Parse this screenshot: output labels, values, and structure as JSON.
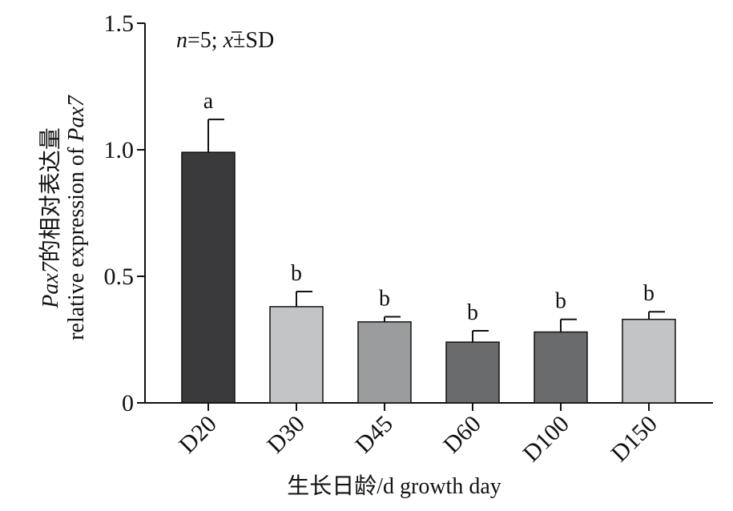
{
  "chart_data": {
    "type": "bar",
    "annotation": {
      "n_label": "n",
      "n_value": "=5; ",
      "mean_symbol": "x",
      "sd_text": "±SD"
    },
    "ylabel_line1_italic": "Pax7",
    "ylabel_line1_rest": "的相对表达量",
    "ylabel_line2_text": "relative expression of ",
    "ylabel_line2_italic": "Pax7",
    "xlabel": "生长日龄/d growth day",
    "ylim": [
      0,
      1.5
    ],
    "yticks": [
      0,
      0.5,
      1.0,
      1.5
    ],
    "ytick_labels": [
      "0",
      "0.5",
      "1.0",
      "1.5"
    ],
    "categories": [
      "D20",
      "D30",
      "D45",
      "D60",
      "D100",
      "D150"
    ],
    "values": [
      0.99,
      0.38,
      0.32,
      0.24,
      0.28,
      0.33
    ],
    "errors": [
      0.13,
      0.06,
      0.02,
      0.045,
      0.05,
      0.03
    ],
    "significance": [
      "a",
      "b",
      "b",
      "b",
      "b",
      "b"
    ],
    "colors": [
      "#3a3a3c",
      "#c2c4c6",
      "#9a9c9e",
      "#6a6b6d",
      "#6a6b6d",
      "#c2c4c6"
    ],
    "grid": false,
    "legend": "none"
  }
}
